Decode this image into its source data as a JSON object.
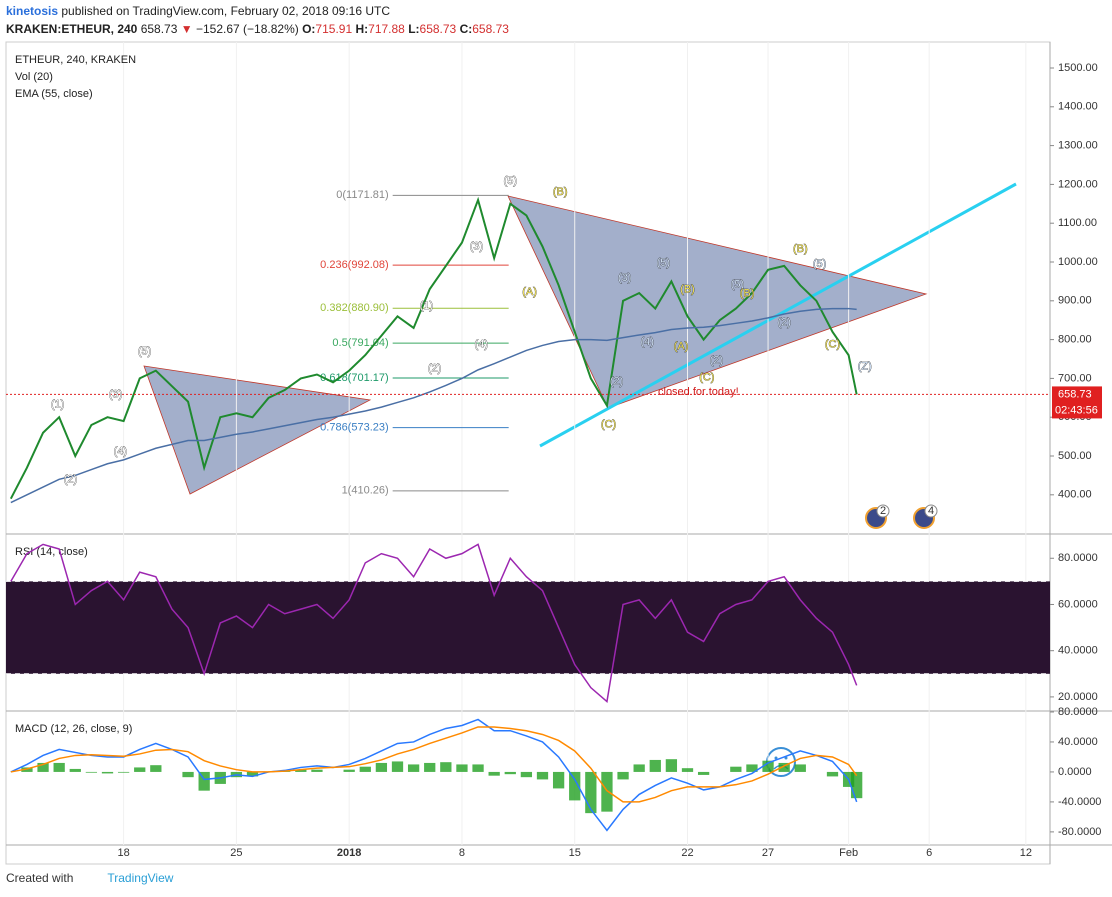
{
  "header": {
    "user": "kinetosis",
    "published": "published on TradingView.com, February 02, 2018 09:16 UTC",
    "symbol": "KRAKEN:ETHEUR, 240",
    "last": "658.73",
    "arrow": "▼",
    "change": "−152.67 (−18.82%)",
    "o_label": "O:",
    "o": "715.91",
    "h_label": "H:",
    "h": "717.88",
    "l_label": "L:",
    "l": "658.73",
    "c_label": "C:",
    "c": "658.73"
  },
  "chart_data": [
    {
      "type": "line",
      "legend": [
        "ETHEUR, 240, KRAKEN",
        "Vol (20)",
        "EMA (55, close)"
      ],
      "x": [
        0,
        1,
        2,
        3,
        4,
        5,
        6,
        7,
        8,
        9,
        10,
        11,
        12,
        13,
        14,
        15,
        16,
        17,
        18,
        19,
        20,
        21,
        22,
        23,
        24,
        25,
        26,
        27,
        28,
        29,
        30,
        31,
        32,
        33,
        34,
        35,
        36,
        37,
        38,
        39,
        40,
        41,
        42,
        43,
        44,
        45,
        46,
        47,
        48,
        49,
        50,
        51,
        52,
        52.5
      ],
      "series": [
        {
          "name": "ETHEUR",
          "color": "#1f8a2e",
          "values": [
            390,
            470,
            560,
            600,
            500,
            580,
            600,
            590,
            700,
            720,
            680,
            640,
            470,
            600,
            610,
            600,
            650,
            670,
            700,
            710,
            690,
            720,
            760,
            810,
            860,
            830,
            930,
            990,
            1050,
            1160,
            1010,
            1150,
            1120,
            1040,
            940,
            820,
            700,
            630,
            900,
            920,
            880,
            950,
            860,
            800,
            850,
            880,
            920,
            980,
            990,
            940,
            900,
            820,
            760,
            658.73
          ]
        },
        {
          "name": "EMA (55, close)",
          "color": "#4a6fa5",
          "values": [
            380,
            400,
            420,
            440,
            450,
            465,
            480,
            490,
            505,
            520,
            530,
            540,
            540,
            548,
            556,
            562,
            570,
            578,
            586,
            594,
            600,
            608,
            616,
            626,
            638,
            650,
            665,
            682,
            700,
            722,
            738,
            755,
            772,
            785,
            795,
            800,
            800,
            798,
            805,
            812,
            818,
            826,
            830,
            832,
            836,
            842,
            848,
            856,
            866,
            873,
            878,
            880,
            880,
            878
          ]
        }
      ],
      "xlim": [
        -0.3,
        64.5
      ],
      "xticks": [
        {
          "value": 7,
          "label": "18"
        },
        {
          "value": 14,
          "label": "25"
        },
        {
          "value": 21,
          "label": "2018"
        },
        {
          "value": 28,
          "label": "8"
        },
        {
          "value": 35,
          "label": "15"
        },
        {
          "value": 42,
          "label": "22"
        },
        {
          "value": 47,
          "label": "27"
        },
        {
          "value": 52,
          "label": "Feb"
        },
        {
          "value": 57,
          "label": "6"
        },
        {
          "value": 63,
          "label": "12"
        }
      ],
      "ylim": [
        299,
        1567
      ],
      "yticks": [
        {
          "value": 400,
          "label": "400.00"
        },
        {
          "value": 500,
          "label": "500.00"
        },
        {
          "value": 600,
          "label": "600.00"
        },
        {
          "value": 700,
          "label": "700.00"
        },
        {
          "value": 800,
          "label": "800.00"
        },
        {
          "value": 900,
          "label": "900.00"
        },
        {
          "value": 1000,
          "label": "1000.00"
        },
        {
          "value": 1100,
          "label": "1100.00"
        },
        {
          "value": 1200,
          "label": "1200.00"
        },
        {
          "value": 1300,
          "label": "1300.00"
        },
        {
          "value": 1400,
          "label": "1400.00"
        },
        {
          "value": 1500,
          "label": "1500.00"
        }
      ],
      "last_price": {
        "value": 658.73,
        "label": "658.73",
        "countdown": "02:43:56",
        "color": "#e02020"
      },
      "fib": {
        "x_range": [
          23.7,
          30.9
        ],
        "levels": [
          {
            "value": 1171.81,
            "label": "0(1171.81)",
            "color": "#8a8a8a"
          },
          {
            "value": 992.08,
            "label": "0.236(992.08)",
            "color": "#e0453a"
          },
          {
            "value": 880.9,
            "label": "0.382(880.90)",
            "color": "#9bbf3a"
          },
          {
            "value": 791.04,
            "label": "0.5(791.04)",
            "color": "#3aa860"
          },
          {
            "value": 701.17,
            "label": "0.618(701.17)",
            "color": "#1e9a6a"
          },
          {
            "value": 573.23,
            "label": "0.786(573.23)",
            "color": "#3a7fc4"
          },
          {
            "value": 410.26,
            "label": "1(410.26)",
            "color": "#8a8a8a"
          }
        ]
      },
      "annotations": [
        {
          "text": "(1)",
          "x": 2.9,
          "y": 632,
          "color": "#ffffff"
        },
        {
          "text": "(2)",
          "x": 3.7,
          "y": 439,
          "color": "#ffffff"
        },
        {
          "text": "(3)",
          "x": 6.5,
          "y": 658,
          "color": "#ffffff"
        },
        {
          "text": "(4)",
          "x": 6.8,
          "y": 511,
          "color": "#ffffff"
        },
        {
          "text": "(5)",
          "x": 8.3,
          "y": 769,
          "color": "#ffffff"
        },
        {
          "text": "(1)",
          "x": 25.8,
          "y": 886,
          "color": "#ffffff"
        },
        {
          "text": "(2)",
          "x": 26.3,
          "y": 725,
          "color": "#ffffff"
        },
        {
          "text": "(3)",
          "x": 28.9,
          "y": 1040,
          "color": "#ffffff"
        },
        {
          "text": "(4)",
          "x": 29.2,
          "y": 787,
          "color": "#ffffff"
        },
        {
          "text": "(5)",
          "x": 31.0,
          "y": 1208,
          "color": "#ffffff"
        },
        {
          "text": "(A)",
          "x": 32.2,
          "y": 922,
          "color": "#f2e35c"
        },
        {
          "text": "(B)",
          "x": 34.1,
          "y": 1180,
          "color": "#f2e35c"
        },
        {
          "text": "(C)",
          "x": 37.1,
          "y": 581,
          "color": "#f2e35c"
        },
        {
          "text": "(2)",
          "x": 37.6,
          "y": 692,
          "color": "#cfe0f5"
        },
        {
          "text": "(3)",
          "x": 38.1,
          "y": 958,
          "color": "#cfe0f5"
        },
        {
          "text": "(4)",
          "x": 39.5,
          "y": 793,
          "color": "#cfe0f5"
        },
        {
          "text": "(5)",
          "x": 40.5,
          "y": 997,
          "color": "#cfe0f5"
        },
        {
          "text": "(A)",
          "x": 41.6,
          "y": 782,
          "color": "#f2e35c"
        },
        {
          "text": "(B)",
          "x": 42.0,
          "y": 929,
          "color": "#f2e35c"
        },
        {
          "text": "(C)",
          "x": 43.2,
          "y": 702,
          "color": "#f2e35c"
        },
        {
          "text": "(2)",
          "x": 43.8,
          "y": 746,
          "color": "#cfe0f5"
        },
        {
          "text": "(5)",
          "x": 45.1,
          "y": 942,
          "color": "#cfe0f5"
        },
        {
          "text": "(B)",
          "x": 45.7,
          "y": 919,
          "color": "#f2e35c"
        },
        {
          "text": "(2)",
          "x": 48.0,
          "y": 844,
          "color": "#cfe0f5"
        },
        {
          "text": "(B)",
          "x": 49.0,
          "y": 1033,
          "color": "#f2e35c"
        },
        {
          "text": "(5)",
          "x": 50.2,
          "y": 994,
          "color": "#cfe0f5"
        },
        {
          "text": "(C)",
          "x": 51.0,
          "y": 787,
          "color": "#f2e35c"
        },
        {
          "text": "(Z)",
          "x": 53.0,
          "y": 731,
          "color": "#cfe0f5"
        }
      ],
      "note": "closed for today!",
      "badges": [
        "2",
        "4"
      ]
    },
    {
      "type": "line",
      "legend": [
        "RSI (14, close)"
      ],
      "x": [
        0,
        1,
        2,
        3,
        4,
        5,
        6,
        7,
        8,
        9,
        10,
        11,
        12,
        13,
        14,
        15,
        16,
        17,
        18,
        19,
        20,
        21,
        22,
        23,
        24,
        25,
        26,
        27,
        28,
        29,
        30,
        31,
        32,
        33,
        34,
        35,
        36,
        37,
        38,
        39,
        40,
        41,
        42,
        43,
        44,
        45,
        46,
        47,
        48,
        49,
        50,
        51,
        52,
        52.5
      ],
      "series": [
        {
          "name": "RSI",
          "color": "#9c27b0",
          "values": [
            70,
            82,
            86,
            84,
            60,
            66,
            70,
            62,
            74,
            72,
            58,
            50,
            30,
            52,
            55,
            50,
            60,
            56,
            58,
            60,
            54,
            62,
            78,
            82,
            80,
            72,
            84,
            80,
            82,
            86,
            64,
            80,
            72,
            66,
            50,
            34,
            24,
            18,
            60,
            62,
            54,
            62,
            48,
            44,
            56,
            60,
            62,
            70,
            72,
            62,
            54,
            48,
            34,
            25
          ]
        }
      ],
      "bands": [
        30,
        70
      ],
      "ylim": [
        13.9,
        90.5
      ],
      "yticks": [
        {
          "value": 20,
          "label": "20.0000"
        },
        {
          "value": 40,
          "label": "40.0000"
        },
        {
          "value": 60,
          "label": "60.0000"
        },
        {
          "value": 80,
          "label": "80.0000"
        }
      ]
    },
    {
      "type": "line",
      "legend": [
        "MACD (12, 26, close, 9)"
      ],
      "x": [
        0,
        1,
        2,
        3,
        4,
        5,
        6,
        7,
        8,
        9,
        10,
        11,
        12,
        13,
        14,
        15,
        16,
        17,
        18,
        19,
        20,
        21,
        22,
        23,
        24,
        25,
        26,
        27,
        28,
        29,
        30,
        31,
        32,
        33,
        34,
        35,
        36,
        37,
        38,
        39,
        40,
        41,
        42,
        43,
        44,
        45,
        46,
        47,
        48,
        49,
        50,
        51,
        52,
        52.5
      ],
      "series": [
        {
          "name": "MACD",
          "color": "#2979ff",
          "values": [
            0,
            10,
            22,
            30,
            26,
            22,
            20,
            20,
            30,
            38,
            30,
            20,
            -10,
            -8,
            -4,
            -6,
            0,
            2,
            6,
            8,
            6,
            10,
            18,
            28,
            38,
            40,
            50,
            58,
            62,
            70,
            55,
            55,
            48,
            40,
            20,
            -10,
            -50,
            -78,
            -50,
            -30,
            -18,
            -8,
            -15,
            -24,
            -20,
            -10,
            -2,
            12,
            20,
            28,
            22,
            14,
            -10,
            -40
          ]
        },
        {
          "name": "Signal",
          "color": "#ff8a00",
          "values": [
            0,
            4,
            10,
            18,
            22,
            23,
            22,
            21,
            24,
            29,
            30,
            27,
            15,
            8,
            3,
            0,
            0,
            1,
            3,
            5,
            6,
            7,
            11,
            16,
            24,
            30,
            38,
            45,
            52,
            60,
            60,
            58,
            55,
            50,
            42,
            28,
            5,
            -25,
            -40,
            -40,
            -34,
            -25,
            -20,
            -20,
            -20,
            -17,
            -12,
            -3,
            8,
            18,
            22,
            20,
            10,
            -5
          ]
        }
      ],
      "histogram_color": "#22a022",
      "ylim": [
        -97.5,
        81.3
      ],
      "yticks": [
        {
          "value": -80,
          "label": "-80.0000"
        },
        {
          "value": -40,
          "label": "-40.0000"
        },
        {
          "value": 0,
          "label": "0.0000"
        },
        {
          "value": 40,
          "label": "40.0000"
        },
        {
          "value": 80,
          "label": "80.0000"
        }
      ]
    }
  ],
  "footer": {
    "created": "Created with",
    "brand": "TradingView"
  }
}
